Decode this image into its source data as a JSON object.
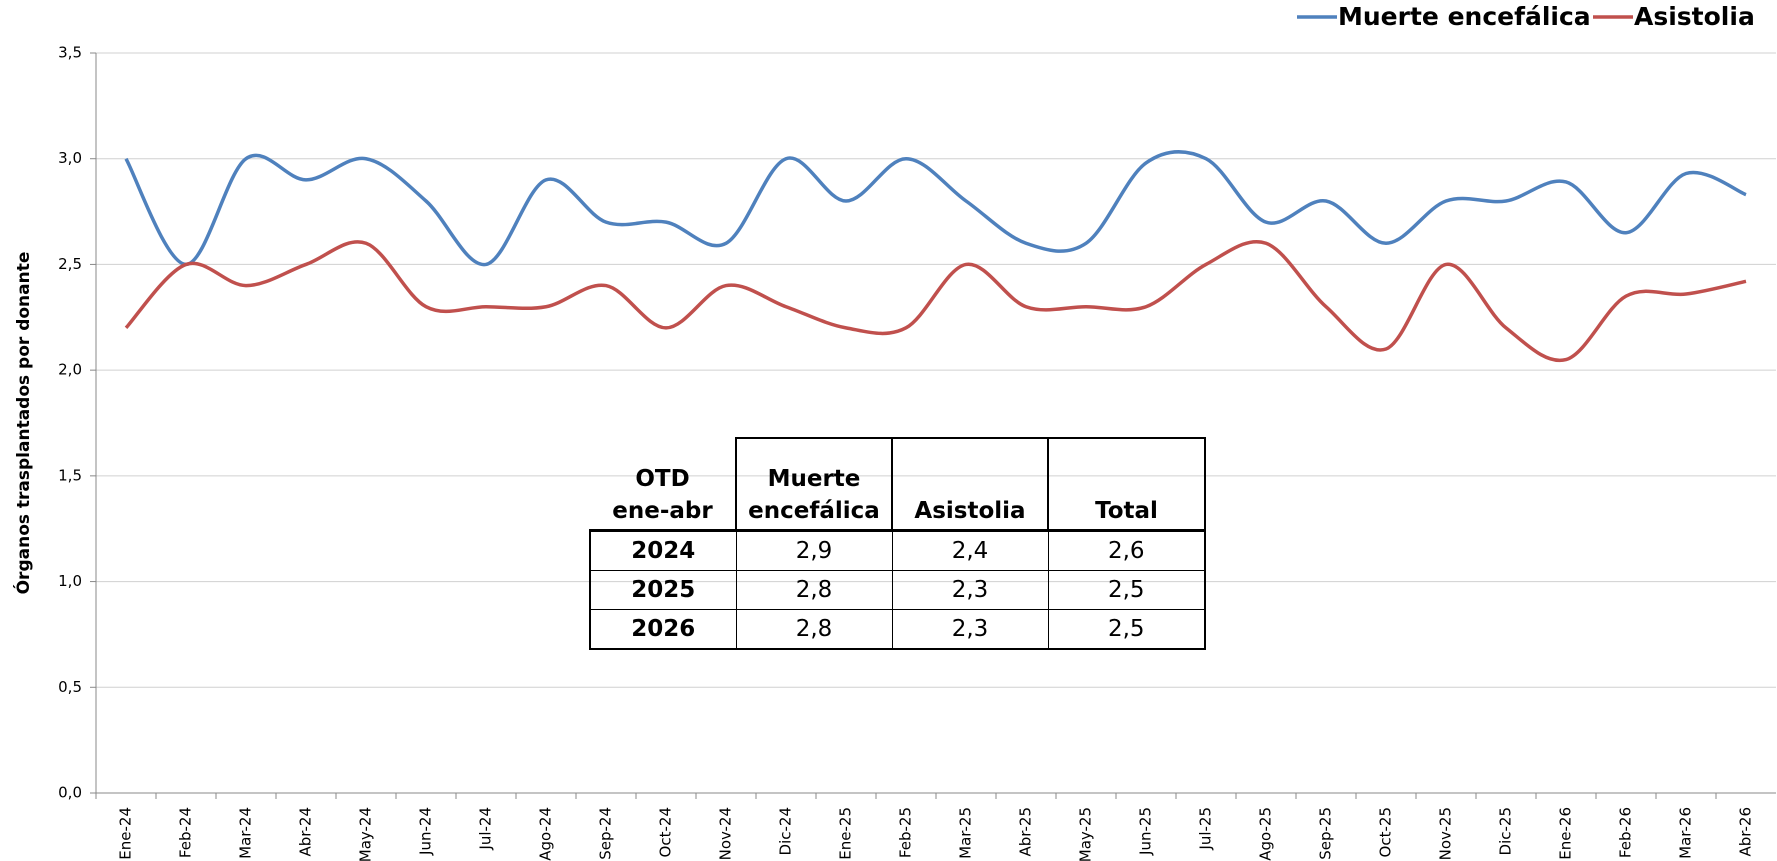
{
  "chart_data": {
    "type": "line",
    "y_label": "Órganos trasplantados por donante",
    "categories": [
      "Ene-24",
      "Feb-24",
      "Mar-24",
      "Abr-24",
      "May-24",
      "Jun-24",
      "Jul-24",
      "Ago-24",
      "Sep-24",
      "Oct-24",
      "Nov-24",
      "Dic-24",
      "Ene-25",
      "Feb-25",
      "Mar-25",
      "Abr-25",
      "May-25",
      "Jun-25",
      "Jul-25",
      "Ago-25",
      "Sep-25",
      "Oct-25",
      "Nov-25",
      "Dic-25",
      "Ene-26",
      "Feb-26",
      "Mar-26",
      "Abr-26"
    ],
    "series": [
      {
        "name": "Muerte encefálica",
        "color": "#4f81bd",
        "values": [
          3.0,
          2.5,
          3.0,
          2.9,
          3.0,
          2.8,
          2.5,
          2.9,
          2.7,
          2.7,
          2.6,
          3.0,
          2.8,
          3.0,
          2.8,
          2.6,
          2.6,
          2.98,
          3.0,
          2.7,
          2.8,
          2.6,
          2.8,
          2.8,
          2.89,
          2.65,
          2.93,
          2.83
        ]
      },
      {
        "name": "Asistolia",
        "color": "#c0504d",
        "values": [
          2.2,
          2.5,
          2.4,
          2.5,
          2.6,
          2.3,
          2.3,
          2.3,
          2.4,
          2.2,
          2.4,
          2.3,
          2.2,
          2.2,
          2.5,
          2.3,
          2.3,
          2.3,
          2.5,
          2.6,
          2.3,
          2.1,
          2.5,
          2.2,
          2.05,
          2.35,
          2.36,
          2.42
        ]
      }
    ],
    "ylim": [
      0,
      3.5
    ],
    "yticks": [
      {
        "value": 0,
        "label": "0,0"
      },
      {
        "value": 0.5,
        "label": "0,5"
      },
      {
        "value": 1,
        "label": "1,0"
      },
      {
        "value": 1.5,
        "label": "1,5"
      },
      {
        "value": 2,
        "label": "2,0"
      },
      {
        "value": 2.5,
        "label": "2,5"
      },
      {
        "value": 3,
        "label": "3,0"
      },
      {
        "value": 3.5,
        "label": "3,5"
      }
    ],
    "grid": true,
    "smooth": true,
    "legend": "top-right"
  },
  "table": {
    "header": [
      [
        "OTD",
        "ene-abr"
      ],
      [
        "Muerte",
        "encefálica"
      ],
      [
        "Asistolia"
      ],
      [
        "Total"
      ]
    ],
    "rows": [
      [
        "2024",
        "2,9",
        "2,4",
        "2,6"
      ],
      [
        "2025",
        "2,8",
        "2,3",
        "2,5"
      ],
      [
        "2026",
        "2,8",
        "2,3",
        "2,5"
      ]
    ]
  }
}
